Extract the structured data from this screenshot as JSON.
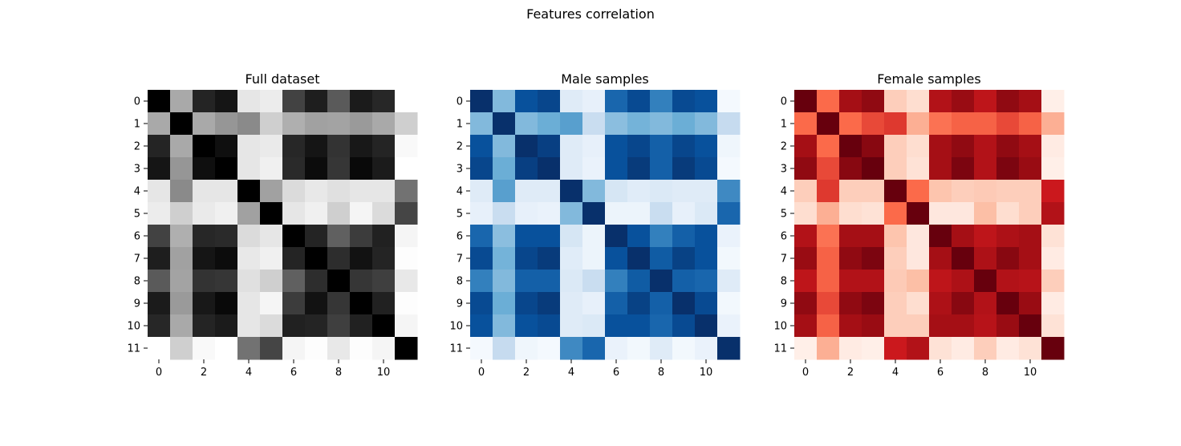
{
  "suptitle": "Features correlation",
  "chart_data": [
    {
      "type": "heatmap",
      "title": "Full dataset",
      "colormap": "Greys",
      "row_labels": [
        "0",
        "1",
        "2",
        "3",
        "4",
        "5",
        "6",
        "7",
        "8",
        "9",
        "10",
        "11"
      ],
      "x_tick_labels": [
        "0",
        "2",
        "4",
        "6",
        "8",
        "10"
      ],
      "values": [
        [
          1.0,
          0.41,
          0.88,
          0.93,
          0.12,
          0.09,
          0.78,
          0.9,
          0.7,
          0.91,
          0.87,
          0.0
        ],
        [
          0.41,
          1.0,
          0.41,
          0.5,
          0.54,
          0.23,
          0.38,
          0.45,
          0.44,
          0.48,
          0.41,
          0.23
        ],
        [
          0.88,
          0.41,
          1.0,
          0.95,
          0.12,
          0.1,
          0.87,
          0.93,
          0.83,
          0.92,
          0.88,
          0.03
        ],
        [
          0.93,
          0.5,
          0.95,
          1.0,
          0.12,
          0.07,
          0.86,
          0.96,
          0.82,
          0.97,
          0.91,
          0.0
        ],
        [
          0.12,
          0.54,
          0.12,
          0.12,
          1.0,
          0.45,
          0.17,
          0.11,
          0.15,
          0.12,
          0.12,
          0.62
        ],
        [
          0.09,
          0.23,
          0.1,
          0.07,
          0.45,
          1.0,
          0.12,
          0.07,
          0.23,
          0.05,
          0.17,
          0.77
        ],
        [
          0.78,
          0.38,
          0.87,
          0.86,
          0.17,
          0.12,
          1.0,
          0.88,
          0.68,
          0.8,
          0.89,
          0.05
        ],
        [
          0.9,
          0.45,
          0.93,
          0.96,
          0.11,
          0.07,
          0.88,
          1.0,
          0.85,
          0.94,
          0.88,
          0.01
        ],
        [
          0.7,
          0.44,
          0.83,
          0.82,
          0.15,
          0.23,
          0.68,
          0.85,
          1.0,
          0.82,
          0.79,
          0.11
        ],
        [
          0.91,
          0.48,
          0.92,
          0.97,
          0.12,
          0.05,
          0.8,
          0.94,
          0.82,
          1.0,
          0.89,
          0.01
        ],
        [
          0.87,
          0.41,
          0.88,
          0.91,
          0.12,
          0.17,
          0.89,
          0.88,
          0.79,
          0.89,
          1.0,
          0.05
        ],
        [
          0.0,
          0.23,
          0.03,
          0.0,
          0.62,
          0.77,
          0.05,
          0.01,
          0.11,
          0.01,
          0.05,
          1.0
        ]
      ]
    },
    {
      "type": "heatmap",
      "title": "Male samples",
      "colormap": "Blues",
      "row_labels": [
        "0",
        "1",
        "2",
        "3",
        "4",
        "5",
        "6",
        "7",
        "8",
        "9",
        "10",
        "11"
      ],
      "x_tick_labels": [
        "0",
        "2",
        "4",
        "6",
        "8",
        "10"
      ],
      "values": [
        [
          1.0,
          0.45,
          0.85,
          0.9,
          0.15,
          0.1,
          0.75,
          0.88,
          0.65,
          0.88,
          0.85,
          0.02
        ],
        [
          0.45,
          1.0,
          0.45,
          0.5,
          0.55,
          0.28,
          0.43,
          0.48,
          0.45,
          0.5,
          0.45,
          0.3
        ],
        [
          0.85,
          0.45,
          1.0,
          0.93,
          0.15,
          0.1,
          0.85,
          0.9,
          0.78,
          0.9,
          0.85,
          0.05
        ],
        [
          0.9,
          0.5,
          0.93,
          1.0,
          0.15,
          0.08,
          0.85,
          0.95,
          0.78,
          0.95,
          0.88,
          0.02
        ],
        [
          0.15,
          0.55,
          0.15,
          0.15,
          1.0,
          0.45,
          0.2,
          0.14,
          0.17,
          0.15,
          0.15,
          0.62
        ],
        [
          0.1,
          0.28,
          0.1,
          0.08,
          0.45,
          1.0,
          0.07,
          0.07,
          0.28,
          0.1,
          0.17,
          0.75
        ],
        [
          0.75,
          0.43,
          0.85,
          0.85,
          0.2,
          0.07,
          1.0,
          0.85,
          0.65,
          0.78,
          0.85,
          0.08
        ],
        [
          0.88,
          0.48,
          0.9,
          0.95,
          0.14,
          0.07,
          0.85,
          1.0,
          0.8,
          0.92,
          0.85,
          0.03
        ],
        [
          0.65,
          0.45,
          0.78,
          0.78,
          0.17,
          0.28,
          0.65,
          0.8,
          1.0,
          0.78,
          0.75,
          0.15
        ],
        [
          0.88,
          0.5,
          0.9,
          0.95,
          0.15,
          0.1,
          0.78,
          0.92,
          0.78,
          1.0,
          0.88,
          0.03
        ],
        [
          0.85,
          0.45,
          0.85,
          0.88,
          0.15,
          0.17,
          0.85,
          0.85,
          0.75,
          0.88,
          1.0,
          0.08
        ],
        [
          0.02,
          0.3,
          0.05,
          0.02,
          0.62,
          0.75,
          0.08,
          0.03,
          0.15,
          0.03,
          0.08,
          1.0
        ]
      ]
    },
    {
      "type": "heatmap",
      "title": "Female samples",
      "colormap": "Reds",
      "row_labels": [
        "0",
        "1",
        "2",
        "3",
        "4",
        "5",
        "6",
        "7",
        "8",
        "9",
        "10",
        "11"
      ],
      "x_tick_labels": [
        "0",
        "2",
        "4",
        "6",
        "8",
        "10"
      ],
      "values": [
        [
          1.0,
          0.5,
          0.85,
          0.9,
          0.2,
          0.12,
          0.8,
          0.88,
          0.75,
          0.9,
          0.85,
          0.03
        ],
        [
          0.5,
          1.0,
          0.5,
          0.58,
          0.62,
          0.33,
          0.48,
          0.52,
          0.52,
          0.58,
          0.52,
          0.33
        ],
        [
          0.85,
          0.5,
          1.0,
          0.92,
          0.2,
          0.12,
          0.85,
          0.9,
          0.8,
          0.9,
          0.85,
          0.05
        ],
        [
          0.9,
          0.58,
          0.92,
          1.0,
          0.2,
          0.1,
          0.85,
          0.95,
          0.8,
          0.95,
          0.88,
          0.03
        ],
        [
          0.2,
          0.62,
          0.2,
          0.2,
          1.0,
          0.5,
          0.25,
          0.2,
          0.22,
          0.2,
          0.2,
          0.7
        ],
        [
          0.12,
          0.33,
          0.12,
          0.1,
          0.5,
          1.0,
          0.07,
          0.07,
          0.28,
          0.12,
          0.2,
          0.8
        ],
        [
          0.8,
          0.48,
          0.85,
          0.85,
          0.25,
          0.07,
          1.0,
          0.85,
          0.75,
          0.82,
          0.85,
          0.1
        ],
        [
          0.88,
          0.52,
          0.9,
          0.95,
          0.2,
          0.07,
          0.85,
          1.0,
          0.82,
          0.92,
          0.85,
          0.05
        ],
        [
          0.75,
          0.52,
          0.8,
          0.8,
          0.22,
          0.28,
          0.75,
          0.82,
          1.0,
          0.8,
          0.78,
          0.2
        ],
        [
          0.9,
          0.58,
          0.9,
          0.95,
          0.2,
          0.12,
          0.82,
          0.92,
          0.8,
          1.0,
          0.88,
          0.05
        ],
        [
          0.85,
          0.52,
          0.85,
          0.88,
          0.2,
          0.2,
          0.85,
          0.85,
          0.78,
          0.88,
          1.0,
          0.1
        ],
        [
          0.03,
          0.33,
          0.05,
          0.03,
          0.7,
          0.8,
          0.1,
          0.05,
          0.2,
          0.05,
          0.1,
          1.0
        ]
      ]
    }
  ]
}
